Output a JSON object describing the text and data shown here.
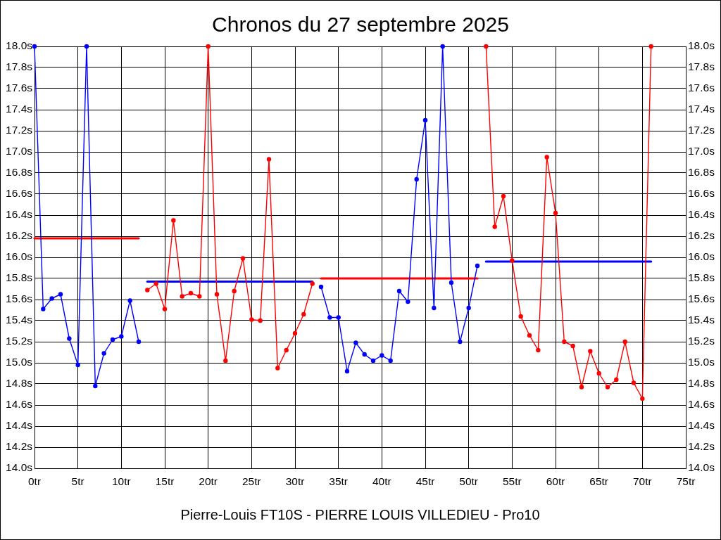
{
  "chart_data": {
    "type": "line",
    "title": "Chronos du 27 septembre 2025",
    "xlabel": "Pierre-Louis FT10S - PIERRE LOUIS VILLEDIEU - Pro10",
    "xlim": [
      0,
      75
    ],
    "xticks": [
      {
        "value": 0,
        "label": "0tr"
      },
      {
        "value": 5,
        "label": "5tr"
      },
      {
        "value": 10,
        "label": "10tr"
      },
      {
        "value": 15,
        "label": "15tr"
      },
      {
        "value": 20,
        "label": "20tr"
      },
      {
        "value": 25,
        "label": "25tr"
      },
      {
        "value": 30,
        "label": "30tr"
      },
      {
        "value": 35,
        "label": "35tr"
      },
      {
        "value": 40,
        "label": "40tr"
      },
      {
        "value": 45,
        "label": "45tr"
      },
      {
        "value": 50,
        "label": "50tr"
      },
      {
        "value": 55,
        "label": "55tr"
      },
      {
        "value": 60,
        "label": "60tr"
      },
      {
        "value": 65,
        "label": "65tr"
      },
      {
        "value": 70,
        "label": "70tr"
      },
      {
        "value": 75,
        "label": "75tr"
      }
    ],
    "ylim": [
      14,
      18
    ],
    "yticks": [
      {
        "value": 14,
        "label": "14.0s"
      },
      {
        "value": 14.2,
        "label": "14.2s"
      },
      {
        "value": 14.4,
        "label": "14.4s"
      },
      {
        "value": 14.6,
        "label": "14.6s"
      },
      {
        "value": 14.8,
        "label": "14.8s"
      },
      {
        "value": 15,
        "label": "15.0s"
      },
      {
        "value": 15.2,
        "label": "15.2s"
      },
      {
        "value": 15.4,
        "label": "15.4s"
      },
      {
        "value": 15.6,
        "label": "15.6s"
      },
      {
        "value": 15.8,
        "label": "15.8s"
      },
      {
        "value": 16,
        "label": "16.0s"
      },
      {
        "value": 16.2,
        "label": "16.2s"
      },
      {
        "value": 16.4,
        "label": "16.4s"
      },
      {
        "value": 16.6,
        "label": "16.6s"
      },
      {
        "value": 16.8,
        "label": "16.8s"
      },
      {
        "value": 17,
        "label": "17.0s"
      },
      {
        "value": 17.2,
        "label": "17.2s"
      },
      {
        "value": 17.4,
        "label": "17.4s"
      },
      {
        "value": 17.6,
        "label": "17.6s"
      },
      {
        "value": 17.8,
        "label": "17.8s"
      },
      {
        "value": 18,
        "label": "18.0s"
      }
    ],
    "y2lim": [
      14,
      18
    ],
    "y2ticks": [
      {
        "value": 14,
        "label": "14.0s"
      },
      {
        "value": 14.2,
        "label": "14.2s"
      },
      {
        "value": 14.4,
        "label": "14.4s"
      },
      {
        "value": 14.6,
        "label": "14.6s"
      },
      {
        "value": 14.8,
        "label": "14.8s"
      },
      {
        "value": 15,
        "label": "15.0s"
      },
      {
        "value": 15.2,
        "label": "15.2s"
      },
      {
        "value": 15.4,
        "label": "15.4s"
      },
      {
        "value": 15.6,
        "label": "15.6s"
      },
      {
        "value": 15.8,
        "label": "15.8s"
      },
      {
        "value": 16,
        "label": "16.0s"
      },
      {
        "value": 16.2,
        "label": "16.2s"
      },
      {
        "value": 16.4,
        "label": "16.4s"
      },
      {
        "value": 16.6,
        "label": "16.6s"
      },
      {
        "value": 16.8,
        "label": "16.8s"
      },
      {
        "value": 17,
        "label": "17.0s"
      },
      {
        "value": 17.2,
        "label": "17.2s"
      },
      {
        "value": 17.4,
        "label": "17.4s"
      },
      {
        "value": 17.6,
        "label": "17.6s"
      },
      {
        "value": 17.8,
        "label": "17.8s"
      },
      {
        "value": 18,
        "label": "18.0s"
      }
    ],
    "grid": true,
    "marker": "circle",
    "line_style": "solid",
    "series": [
      {
        "color": "#0000ff",
        "x": [
          0,
          1,
          2,
          3,
          4,
          5,
          6,
          7,
          8,
          9,
          10,
          11,
          12
        ],
        "values": [
          18.0,
          15.51,
          15.61,
          15.65,
          15.23,
          14.98,
          18.0,
          14.78,
          15.09,
          15.22,
          15.25,
          15.59,
          15.2
        ]
      },
      {
        "color": "#ff0000",
        "x": [
          13,
          14,
          15,
          16,
          17,
          18,
          19,
          20,
          21,
          22,
          23,
          24,
          25,
          26,
          27,
          28,
          29,
          30,
          31,
          32
        ],
        "values": [
          15.69,
          15.75,
          15.51,
          16.35,
          15.63,
          15.66,
          15.63,
          18.0,
          15.65,
          15.02,
          15.68,
          15.99,
          15.41,
          15.4,
          16.93,
          14.95,
          15.12,
          15.28,
          15.46,
          15.75
        ]
      },
      {
        "color": "#0000ff",
        "x": [
          33,
          34,
          35,
          36,
          37,
          38,
          39,
          40,
          41,
          42,
          43,
          44,
          45,
          46,
          47,
          48,
          49,
          50,
          51
        ],
        "values": [
          15.72,
          15.43,
          15.43,
          14.92,
          15.19,
          15.08,
          15.02,
          15.07,
          15.02,
          15.68,
          15.58,
          16.74,
          17.3,
          15.52,
          18.0,
          15.76,
          15.2,
          15.52,
          15.92
        ]
      },
      {
        "color": "#ff0000",
        "x": [
          52,
          53,
          54,
          55,
          56,
          57,
          58,
          59,
          60,
          61,
          62,
          63,
          64,
          65,
          66,
          67,
          68,
          69,
          70,
          71
        ],
        "values": [
          18.0,
          16.29,
          16.58,
          15.97,
          15.44,
          15.26,
          15.12,
          16.95,
          16.42,
          15.2,
          15.16,
          14.77,
          15.11,
          14.9,
          14.77,
          14.84,
          15.2,
          14.81,
          14.66,
          18.0
        ]
      },
      {
        "color": "#ff0000",
        "marker": "none",
        "x": [
          0,
          12
        ],
        "values": [
          16.18,
          16.18
        ]
      },
      {
        "color": "#0000ff",
        "marker": "none",
        "x": [
          13,
          32
        ],
        "values": [
          15.77,
          15.77
        ]
      },
      {
        "color": "#ff0000",
        "marker": "none",
        "x": [
          33,
          51
        ],
        "values": [
          15.8,
          15.8
        ]
      },
      {
        "color": "#0000ff",
        "marker": "none",
        "x": [
          52,
          71
        ],
        "values": [
          15.96,
          15.96
        ]
      }
    ]
  }
}
